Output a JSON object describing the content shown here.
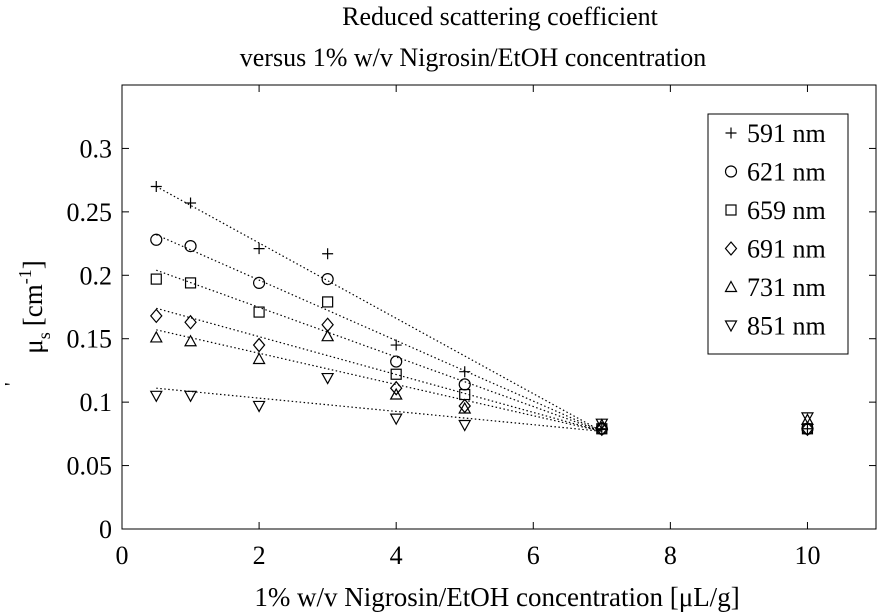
{
  "chart_data": {
    "type": "scatter",
    "title_line1": "Reduced scattering coefficient",
    "title_line2": "versus 1% w/v Nigrosin/EtOH concentration",
    "xlabel": "1% w/v Nigrosin/EtOH concentration [μL/g]",
    "ylabel": {
      "base": "μ",
      "prime": "'",
      "sub": "s",
      "unit_open": "[cm",
      "unit_exp": "-1",
      "unit_close": "]"
    },
    "xlim": [
      0,
      11
    ],
    "ylim": [
      0,
      0.35
    ],
    "xticks": [
      0,
      2,
      4,
      6,
      8,
      10
    ],
    "xtick_labels": [
      "0",
      "2",
      "4",
      "6",
      "8",
      "10"
    ],
    "yticks": [
      0,
      0.05,
      0.1,
      0.15,
      0.2,
      0.25,
      0.3
    ],
    "ytick_labels": [
      "0",
      "0.05",
      "0.1",
      "0.15",
      "0.2",
      "0.25",
      "0.3"
    ],
    "grid": false,
    "legend_position": "top-right",
    "series": [
      {
        "name": "591 nm",
        "marker": "plus",
        "x": [
          0.5,
          1,
          2,
          3,
          4,
          5,
          7,
          10
        ],
        "y": [
          0.27,
          0.257,
          0.221,
          0.217,
          0.145,
          0.124,
          0.079,
          0.079
        ],
        "fit": [
          [
            0.5,
            0.27
          ],
          [
            7,
            0.077
          ]
        ]
      },
      {
        "name": "621 nm",
        "marker": "circle",
        "x": [
          0.5,
          1,
          2,
          3,
          4,
          5,
          7,
          10
        ],
        "y": [
          0.228,
          0.223,
          0.194,
          0.197,
          0.132,
          0.114,
          0.079,
          0.079
        ],
        "fit": [
          [
            0.5,
            0.232
          ],
          [
            7,
            0.077
          ]
        ]
      },
      {
        "name": "659 nm",
        "marker": "square",
        "x": [
          0.5,
          1,
          2,
          3,
          4,
          5,
          7,
          10
        ],
        "y": [
          0.197,
          0.194,
          0.171,
          0.179,
          0.122,
          0.106,
          0.079,
          0.079
        ],
        "fit": [
          [
            0.5,
            0.204
          ],
          [
            7,
            0.077
          ]
        ]
      },
      {
        "name": "691 nm",
        "marker": "diamond",
        "x": [
          0.5,
          1,
          2,
          3,
          4,
          5,
          7,
          10
        ],
        "y": [
          0.168,
          0.163,
          0.145,
          0.161,
          0.111,
          0.097,
          0.079,
          0.079
        ],
        "fit": [
          [
            0.5,
            0.174
          ],
          [
            7,
            0.077
          ]
        ]
      },
      {
        "name": "731 nm",
        "marker": "triangle-up",
        "x": [
          0.5,
          1,
          2,
          3,
          4,
          5,
          7,
          10
        ],
        "y": [
          0.151,
          0.148,
          0.134,
          0.152,
          0.106,
          0.095,
          0.082,
          0.086
        ],
        "fit": [
          [
            0.5,
            0.157
          ],
          [
            7,
            0.077
          ]
        ]
      },
      {
        "name": "851 nm",
        "marker": "triangle-down",
        "x": [
          0.5,
          1,
          2,
          3,
          4,
          5,
          7,
          10
        ],
        "y": [
          0.105,
          0.105,
          0.097,
          0.119,
          0.087,
          0.082,
          0.083,
          0.088
        ],
        "fit": [
          [
            0.5,
            0.111
          ],
          [
            7,
            0.077
          ]
        ]
      }
    ]
  }
}
